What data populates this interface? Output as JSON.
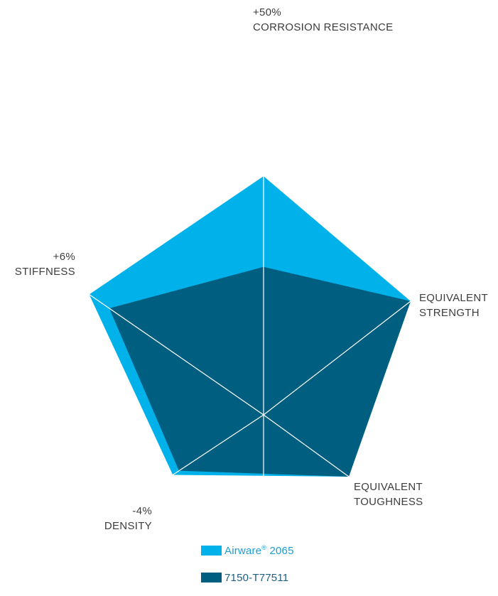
{
  "chart_data": {
    "type": "radar",
    "axes": [
      {
        "value_label": "+50%",
        "name": "CORROSION RESISTANCE"
      },
      {
        "value_label": "",
        "name": "EQUIVALENT STRENGTH"
      },
      {
        "value_label": "",
        "name": "EQUIVALENT TOUGHNESS"
      },
      {
        "value_label": "-4%",
        "name": "DENSITY"
      },
      {
        "value_label": "+6%",
        "name": "STIFFNESS"
      }
    ],
    "series": [
      {
        "name": "Airware® 2065",
        "color": "#00b2e9",
        "values": [
          1.0,
          1.0,
          1.0,
          1.03,
          1.04
        ]
      },
      {
        "name": "7150-T77511",
        "color": "#005e80",
        "values": [
          0.62,
          1.0,
          1.0,
          0.96,
          0.92
        ]
      }
    ]
  },
  "legend": {
    "airware_prefix": "Airware",
    "airware_reg": "®",
    "airware_suffix": " 2065",
    "reference": "7150-T77511"
  }
}
